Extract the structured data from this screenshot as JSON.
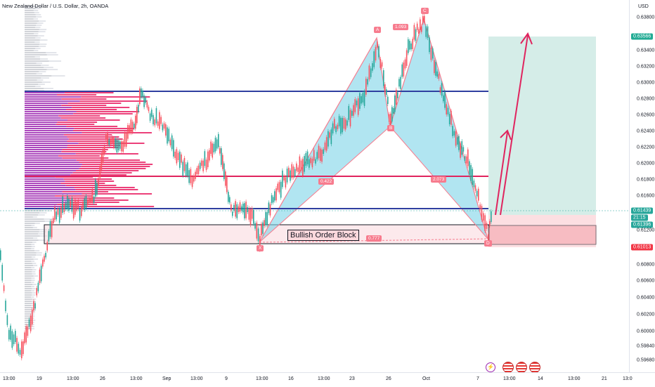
{
  "header": {
    "title": "New Zealand Dollar / U.S. Dollar, 2h, OANDA"
  },
  "price_axis": {
    "currency": "USD",
    "ticks": [
      "0.63800",
      "0.63400",
      "0.63200",
      "0.63000",
      "0.62800",
      "0.62600",
      "0.62400",
      "0.62200",
      "0.62000",
      "0.61800",
      "0.61600",
      "0.61200",
      "0.60800",
      "0.60600",
      "0.60400",
      "0.60200",
      "0.60000",
      "0.59840",
      "0.59680"
    ],
    "badges": {
      "target": {
        "value": "0.63566",
        "color": "#22ab94"
      },
      "last": {
        "value": "0.61439",
        "color": "#26a69a"
      },
      "countdown": {
        "value": "21:15",
        "color": "#26a69a"
      },
      "current": {
        "value": "0.61396",
        "color": "#26a69a"
      },
      "stop": {
        "value": "0.61013",
        "color": "#f23645"
      }
    }
  },
  "time_axis": {
    "ticks": [
      "13:00",
      "19",
      "13:00",
      "26",
      "13:00",
      "Sep",
      "13:00",
      "9",
      "13:00",
      "16",
      "13:00",
      "23",
      "26",
      "Oct",
      "7",
      "13:00",
      "14",
      "13:00",
      "21",
      "13:0"
    ]
  },
  "pattern": {
    "points": {
      "X": "X",
      "A": "A",
      "B": "B",
      "C": "C",
      "D": "D"
    },
    "ratios": {
      "ab": "0.422",
      "xa_ad": "0.777",
      "bc": "1.093",
      "cd": "2.073"
    }
  },
  "annotations": {
    "order_block": "Bullish Order Block"
  },
  "colors": {
    "bull": "#26a69a",
    "bear": "#f7525f",
    "blue_line": "#2f3fa0",
    "red_line": "#e0245e",
    "harmonic": "#7dd3e8"
  },
  "toolbar_icons": [
    "lightning-icon",
    "us-flag-icon",
    "us-flag-icon",
    "us-flag-icon"
  ]
}
